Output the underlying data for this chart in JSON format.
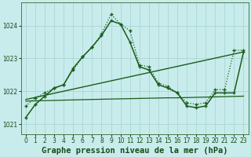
{
  "title": "Graphe pression niveau de la mer (hPa)",
  "background_color": "#c8ecec",
  "grid_color": "#b0d8d8",
  "line_color": "#1a5c1a",
  "xlim": [
    -0.5,
    23.5
  ],
  "ylim": [
    1020.7,
    1024.7
  ],
  "yticks": [
    1021,
    1022,
    1023,
    1024
  ],
  "xticks": [
    0,
    1,
    2,
    3,
    4,
    5,
    6,
    7,
    8,
    9,
    10,
    11,
    12,
    13,
    14,
    15,
    16,
    17,
    18,
    19,
    20,
    21,
    22,
    23
  ],
  "title_fontsize": 7.5,
  "tick_fontsize": 5.5,
  "series_dotted_x": [
    0,
    1,
    2,
    3,
    4,
    5,
    6,
    7,
    8,
    9,
    10,
    11,
    12,
    13,
    14,
    15,
    16,
    17,
    18,
    19,
    20,
    21,
    22,
    23
  ],
  "series_dotted_y": [
    1021.55,
    1021.8,
    1021.95,
    1022.1,
    1022.2,
    1022.65,
    1023.05,
    1023.35,
    1023.75,
    1024.35,
    1024.05,
    1023.85,
    1022.8,
    1022.75,
    1022.25,
    1022.15,
    1021.95,
    1021.65,
    1021.6,
    1021.65,
    1022.05,
    1022.05,
    1023.25,
    1023.25
  ],
  "series_solid_x": [
    0,
    1,
    2,
    3,
    4,
    5,
    6,
    7,
    8,
    9,
    10,
    11,
    12,
    13,
    14,
    15,
    16,
    17,
    18,
    19,
    20,
    21,
    22,
    23
  ],
  "series_solid_y": [
    1021.2,
    1021.6,
    1021.85,
    1022.1,
    1022.2,
    1022.7,
    1023.05,
    1023.35,
    1023.7,
    1024.15,
    1024.05,
    1023.5,
    1022.75,
    1022.65,
    1022.2,
    1022.1,
    1021.95,
    1021.55,
    1021.5,
    1021.55,
    1021.95,
    1021.95,
    1021.95,
    1023.2
  ],
  "diag_line_x": [
    0,
    23
  ],
  "diag_line_y": [
    1021.75,
    1023.2
  ],
  "flat_line_x": [
    0,
    7,
    15,
    16,
    23
  ],
  "flat_line_y": [
    1021.7,
    1021.75,
    1021.8,
    1021.8,
    1021.85
  ]
}
